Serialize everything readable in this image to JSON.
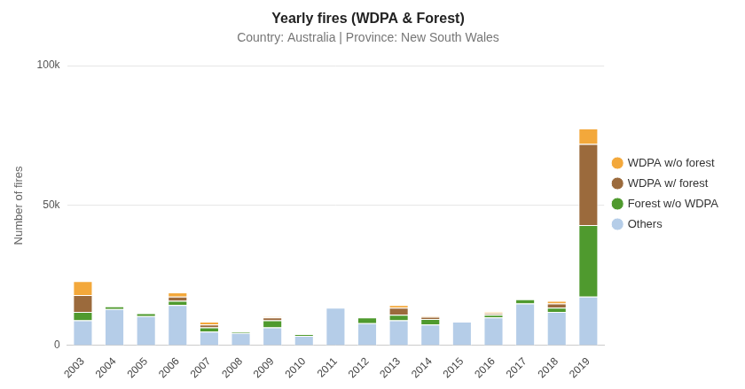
{
  "chart_data": {
    "type": "bar",
    "title": "Yearly fires (WDPA & Forest)",
    "subtitle": "Country: Australia | Province: New South Wales",
    "y_label": "Number of fires",
    "categories": [
      "2003",
      "2004",
      "2005",
      "2006",
      "2007",
      "2008",
      "2009",
      "2010",
      "2011",
      "2012",
      "2013",
      "2014",
      "2015",
      "2016",
      "2017",
      "2018",
      "2019"
    ],
    "series": [
      {
        "name": "Others",
        "color": "#b5cde8",
        "values": [
          9000,
          13000,
          10500,
          14500,
          5000,
          4500,
          6500,
          3500,
          13500,
          8000,
          9000,
          7500,
          8500,
          10000,
          15000,
          12000,
          17500
        ]
      },
      {
        "name": "Forest w/o WDPA",
        "color": "#4f9a2e",
        "values": [
          3000,
          1000,
          1000,
          1500,
          1500,
          500,
          2500,
          500,
          0,
          2000,
          2000,
          2000,
          0,
          1000,
          1500,
          1500,
          25500
        ]
      },
      {
        "name": "WDPA w/ forest",
        "color": "#9b6a3c",
        "values": [
          6000,
          0,
          0,
          1500,
          1000,
          0,
          1000,
          0,
          0,
          0,
          2500,
          800,
          0,
          500,
          0,
          1500,
          29000
        ]
      },
      {
        "name": "WDPA w/o forest",
        "color": "#f3a83b",
        "values": [
          5000,
          0,
          0,
          1500,
          1000,
          0,
          300,
          0,
          0,
          0,
          1000,
          300,
          0,
          500,
          0,
          1000,
          5500
        ]
      }
    ],
    "stacked": true,
    "ylim": [
      0,
      100000
    ],
    "yticks": [
      0,
      {
        "value": 50000,
        "label": "50k"
      },
      {
        "value": 100000,
        "label": "100k"
      }
    ],
    "grid": true,
    "legend": "right"
  }
}
